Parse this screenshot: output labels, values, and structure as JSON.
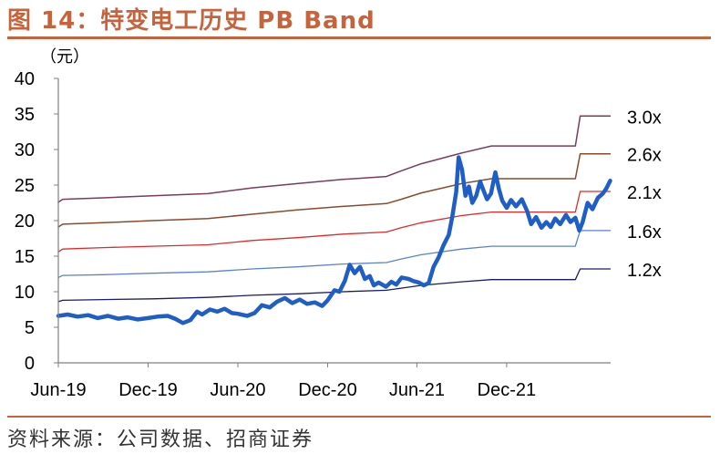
{
  "figure": {
    "title": "图 14：特变电工历史 PB Band",
    "source": "资料来源：公司数据、招商证券"
  },
  "chart_data": {
    "type": "line",
    "title": "图 14：特变电工历史 PB Band",
    "ylabel": "（元）",
    "xlabel": "",
    "ylim": [
      0,
      40
    ],
    "yticks": [
      0,
      5,
      10,
      15,
      20,
      25,
      30,
      35,
      40
    ],
    "xlim": [
      "2019-06-01",
      "2022-07-01"
    ],
    "xticks": [
      {
        "date": "2019-06-01",
        "label": "Jun-19"
      },
      {
        "date": "2019-12-01",
        "label": "Dec-19"
      },
      {
        "date": "2020-06-01",
        "label": "Jun-20"
      },
      {
        "date": "2020-12-01",
        "label": "Dec-20"
      },
      {
        "date": "2021-06-01",
        "label": "Jun-21"
      },
      {
        "date": "2021-12-01",
        "label": "Dec-21"
      }
    ],
    "grid": false,
    "series": [
      {
        "name": "3.0x",
        "color": "#7b3a5e",
        "width": 1.5,
        "points": [
          [
            "2019-06-01",
            22.6
          ],
          [
            "2019-06-10",
            23.0
          ],
          [
            "2019-09-01",
            23.2
          ],
          [
            "2019-12-10",
            23.5
          ],
          [
            "2020-04-01",
            23.8
          ],
          [
            "2020-06-30",
            24.6
          ],
          [
            "2020-09-30",
            25.2
          ],
          [
            "2021-01-01",
            25.8
          ],
          [
            "2021-03-31",
            26.2
          ],
          [
            "2021-04-30",
            27.0
          ],
          [
            "2021-06-10",
            28.0
          ],
          [
            "2021-08-31",
            29.5
          ],
          [
            "2021-10-31",
            30.5
          ],
          [
            "2022-04-20",
            30.5
          ],
          [
            "2022-04-30",
            34.7
          ],
          [
            "2022-06-30",
            34.7
          ]
        ]
      },
      {
        "name": "2.6x",
        "color": "#8b4a2b",
        "width": 1.5,
        "points": [
          [
            "2019-06-01",
            19.1
          ],
          [
            "2019-06-10",
            19.5
          ],
          [
            "2019-09-01",
            19.7
          ],
          [
            "2019-12-10",
            20.0
          ],
          [
            "2020-04-01",
            20.3
          ],
          [
            "2020-06-30",
            20.9
          ],
          [
            "2020-09-30",
            21.5
          ],
          [
            "2021-01-01",
            22.0
          ],
          [
            "2021-03-31",
            22.4
          ],
          [
            "2021-04-30",
            23.0
          ],
          [
            "2021-06-10",
            23.9
          ],
          [
            "2021-08-31",
            25.2
          ],
          [
            "2021-10-31",
            25.9
          ],
          [
            "2022-04-20",
            25.9
          ],
          [
            "2022-04-30",
            29.4
          ],
          [
            "2022-06-30",
            29.4
          ]
        ]
      },
      {
        "name": "2.1x",
        "color": "#e02a2a",
        "width": 1.3,
        "points": [
          [
            "2019-06-01",
            15.6
          ],
          [
            "2019-06-10",
            16.0
          ],
          [
            "2019-09-01",
            16.2
          ],
          [
            "2019-12-10",
            16.4
          ],
          [
            "2020-04-01",
            16.6
          ],
          [
            "2020-06-30",
            17.2
          ],
          [
            "2020-09-30",
            17.6
          ],
          [
            "2021-01-01",
            18.1
          ],
          [
            "2021-03-31",
            18.4
          ],
          [
            "2021-04-30",
            19.0
          ],
          [
            "2021-06-10",
            19.7
          ],
          [
            "2021-08-31",
            20.7
          ],
          [
            "2021-10-31",
            21.2
          ],
          [
            "2022-04-20",
            21.2
          ],
          [
            "2022-04-30",
            24.1
          ],
          [
            "2022-06-30",
            24.1
          ]
        ]
      },
      {
        "name": "1.6x",
        "color": "#5a82cf",
        "width": 1.3,
        "points": [
          [
            "2019-06-01",
            12.0
          ],
          [
            "2019-06-10",
            12.3
          ],
          [
            "2019-09-01",
            12.4
          ],
          [
            "2019-12-10",
            12.6
          ],
          [
            "2020-04-01",
            12.8
          ],
          [
            "2020-06-30",
            13.2
          ],
          [
            "2020-09-30",
            13.5
          ],
          [
            "2021-01-01",
            13.9
          ],
          [
            "2021-03-31",
            14.1
          ],
          [
            "2021-04-30",
            14.6
          ],
          [
            "2021-06-10",
            15.2
          ],
          [
            "2021-08-31",
            16.0
          ],
          [
            "2021-10-31",
            16.4
          ],
          [
            "2022-04-20",
            16.4
          ],
          [
            "2022-04-30",
            18.6
          ],
          [
            "2022-06-30",
            18.6
          ]
        ]
      },
      {
        "name": "1.2x",
        "color": "#1a1a6e",
        "width": 1.3,
        "points": [
          [
            "2019-06-01",
            8.6
          ],
          [
            "2019-06-10",
            8.8
          ],
          [
            "2019-09-01",
            8.9
          ],
          [
            "2019-12-10",
            9.0
          ],
          [
            "2020-04-01",
            9.2
          ],
          [
            "2020-06-30",
            9.5
          ],
          [
            "2020-09-30",
            9.7
          ],
          [
            "2021-01-01",
            10.0
          ],
          [
            "2021-03-31",
            10.2
          ],
          [
            "2021-04-30",
            10.5
          ],
          [
            "2021-06-10",
            10.9
          ],
          [
            "2021-08-31",
            11.4
          ],
          [
            "2021-10-31",
            11.7
          ],
          [
            "2022-04-20",
            11.7
          ],
          [
            "2022-04-30",
            13.2
          ],
          [
            "2022-06-30",
            13.2
          ]
        ]
      },
      {
        "name": "",
        "color": "#1f5fc5",
        "width": 4.5,
        "points": [
          [
            "2019-06-01",
            6.6
          ],
          [
            "2019-06-20",
            6.8
          ],
          [
            "2019-07-10",
            6.5
          ],
          [
            "2019-08-01",
            6.7
          ],
          [
            "2019-08-20",
            6.3
          ],
          [
            "2019-09-10",
            6.6
          ],
          [
            "2019-10-01",
            6.2
          ],
          [
            "2019-10-20",
            6.4
          ],
          [
            "2019-11-10",
            6.1
          ],
          [
            "2019-12-01",
            6.3
          ],
          [
            "2019-12-20",
            6.5
          ],
          [
            "2020-01-10",
            6.6
          ],
          [
            "2020-01-25",
            6.2
          ],
          [
            "2020-02-10",
            5.6
          ],
          [
            "2020-02-25",
            6.0
          ],
          [
            "2020-03-10",
            7.2
          ],
          [
            "2020-03-20",
            6.8
          ],
          [
            "2020-04-05",
            7.5
          ],
          [
            "2020-04-20",
            7.2
          ],
          [
            "2020-05-05",
            7.6
          ],
          [
            "2020-05-20",
            7.0
          ],
          [
            "2020-06-01",
            6.9
          ],
          [
            "2020-06-20",
            6.6
          ],
          [
            "2020-07-05",
            7.0
          ],
          [
            "2020-07-20",
            8.1
          ],
          [
            "2020-08-05",
            7.8
          ],
          [
            "2020-08-20",
            8.6
          ],
          [
            "2020-09-05",
            9.1
          ],
          [
            "2020-09-20",
            8.4
          ],
          [
            "2020-10-05",
            8.9
          ],
          [
            "2020-10-20",
            8.3
          ],
          [
            "2020-11-05",
            8.5
          ],
          [
            "2020-11-20",
            8.0
          ],
          [
            "2020-12-01",
            8.8
          ],
          [
            "2020-12-15",
            10.2
          ],
          [
            "2020-12-25",
            10.0
          ],
          [
            "2021-01-05",
            11.5
          ],
          [
            "2021-01-15",
            13.8
          ],
          [
            "2021-01-25",
            12.6
          ],
          [
            "2021-02-05",
            13.5
          ],
          [
            "2021-02-15",
            11.8
          ],
          [
            "2021-02-25",
            12.2
          ],
          [
            "2021-03-05",
            10.9
          ],
          [
            "2021-03-15",
            11.3
          ],
          [
            "2021-03-30",
            10.7
          ],
          [
            "2021-04-10",
            11.4
          ],
          [
            "2021-04-20",
            11.0
          ],
          [
            "2021-05-01",
            12.0
          ],
          [
            "2021-05-15",
            11.8
          ],
          [
            "2021-05-25",
            11.5
          ],
          [
            "2021-06-05",
            11.3
          ],
          [
            "2021-06-15",
            10.9
          ],
          [
            "2021-06-25",
            11.2
          ],
          [
            "2021-07-05",
            13.5
          ],
          [
            "2021-07-15",
            14.8
          ],
          [
            "2021-07-25",
            16.5
          ],
          [
            "2021-08-05",
            18.0
          ],
          [
            "2021-08-12",
            20.5
          ],
          [
            "2021-08-20",
            24.0
          ],
          [
            "2021-08-25",
            28.9
          ],
          [
            "2021-09-01",
            27.2
          ],
          [
            "2021-09-08",
            23.5
          ],
          [
            "2021-09-15",
            24.8
          ],
          [
            "2021-09-22",
            22.5
          ],
          [
            "2021-09-30",
            23.5
          ],
          [
            "2021-10-08",
            25.5
          ],
          [
            "2021-10-15",
            24.2
          ],
          [
            "2021-10-22",
            23.0
          ],
          [
            "2021-10-30",
            23.8
          ],
          [
            "2021-11-08",
            26.8
          ],
          [
            "2021-11-15",
            24.5
          ],
          [
            "2021-11-22",
            22.8
          ],
          [
            "2021-12-01",
            21.8
          ],
          [
            "2021-12-10",
            22.9
          ],
          [
            "2021-12-20",
            22.0
          ],
          [
            "2022-01-01",
            23.0
          ],
          [
            "2022-01-12",
            21.3
          ],
          [
            "2022-01-20",
            19.5
          ],
          [
            "2022-01-30",
            20.5
          ],
          [
            "2022-02-10",
            19.0
          ],
          [
            "2022-02-20",
            19.8
          ],
          [
            "2022-03-01",
            19.1
          ],
          [
            "2022-03-10",
            20.3
          ],
          [
            "2022-03-20",
            19.5
          ],
          [
            "2022-04-01",
            20.8
          ],
          [
            "2022-04-10",
            19.8
          ],
          [
            "2022-04-20",
            20.4
          ],
          [
            "2022-04-28",
            18.6
          ],
          [
            "2022-05-05",
            19.8
          ],
          [
            "2022-05-15",
            22.5
          ],
          [
            "2022-05-25",
            21.6
          ],
          [
            "2022-06-05",
            23.2
          ],
          [
            "2022-06-15",
            23.8
          ],
          [
            "2022-06-22",
            24.5
          ],
          [
            "2022-06-30",
            25.6
          ]
        ]
      }
    ]
  }
}
